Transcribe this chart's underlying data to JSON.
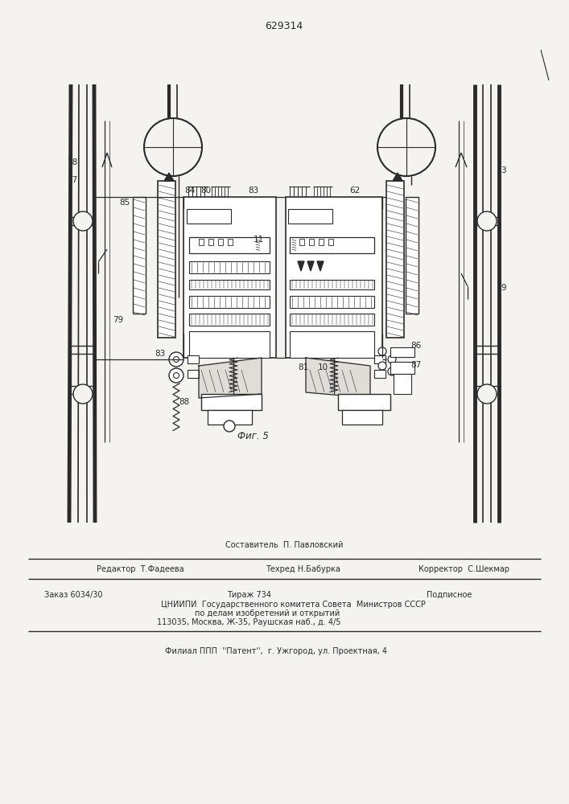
{
  "patent_number": "629314",
  "fig_label": "Фиг. 5",
  "bg_color": "#f5f3ef",
  "line_color": "#2a2a2a",
  "footer": {
    "line1_left": "Редактор  Т.Фадеева",
    "line1_center_top": "Составитель  П. Павловский",
    "line1_center": "Техред Н.Бабурка",
    "line1_right": "Корректор  С.Шекмар",
    "line2_col1": "Заказ 6034/30",
    "line2_col2": "Тираж 734",
    "line2_col3": "Подписное",
    "line3": "ЦНИИПИ  Государственного комитета Совета  Министров СССР",
    "line4": "по делам изобретений и открытий",
    "line5": "113035, Москва, Ж-35, Раушская наб., д. 4/5",
    "line6": "Филиал ППП  ''Патент'',  г. Ужгород, ул. Проектная, 4"
  }
}
